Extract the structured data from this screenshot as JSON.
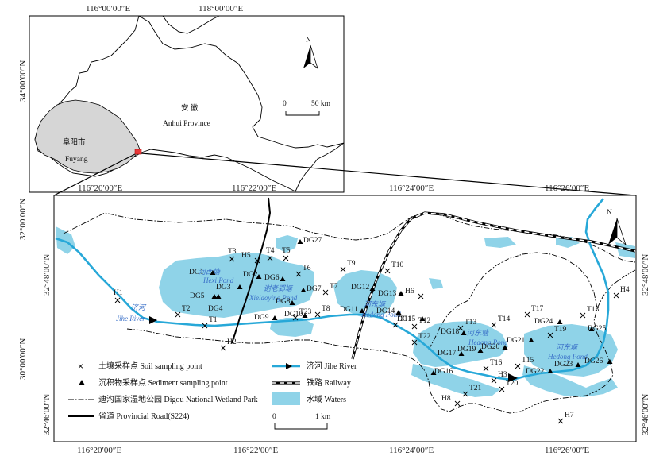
{
  "inset_map": {
    "longitude_labels": [
      "116°00′00″E",
      "118°00′00″E"
    ],
    "latitude_labels": [
      "34°00′00″N",
      "32°00′00″N",
      "30°00′00″N"
    ],
    "province_label_cn": "安 徽",
    "province_label_en": "Anhui Province",
    "city_label_cn": "阜阳市",
    "city_label_en": "Fuyang",
    "scale_label_zero": "0",
    "scale_label": "50 km",
    "north_label": "N"
  },
  "main_map": {
    "longitude_labels_top": [
      "116°20′00″E",
      "116°22′00″E",
      "116°24′00″E",
      "116°26′00″E"
    ],
    "longitude_labels_bottom": [
      "116°20′00″E",
      "116°22′00″E",
      "116°24′00″E",
      "116°26′00″E"
    ],
    "latitude_labels_left": [
      "32°48′00″N",
      "32°46′00″N"
    ],
    "latitude_labels_right": [
      "32°48′00″N",
      "32°46′00″N"
    ],
    "north_label": "N",
    "scale_label_zero": "0",
    "scale_label": "1 km",
    "water_labels": [
      {
        "cn": "河西塘",
        "en": "Hexi Pond"
      },
      {
        "cn": "谢老郢塘",
        "en": "Xielaoying Pond"
      },
      {
        "cn": "河东塘",
        "en": "Hedong Pond"
      },
      {
        "cn": "河东塘",
        "en": "Hedong Pond"
      },
      {
        "cn": "河东塘",
        "en": "Hedong Pond"
      },
      {
        "cn": "济河",
        "en": "Jihe River"
      }
    ],
    "soil_points": [
      "T1",
      "T2",
      "T3",
      "T4",
      "T5",
      "T6",
      "T7",
      "T8",
      "T9",
      "T10",
      "T11",
      "T12",
      "T13",
      "T14",
      "T15",
      "T16",
      "T17",
      "T18",
      "T19",
      "T20",
      "T21",
      "T22",
      "T23",
      "H1",
      "H2",
      "H3",
      "H4",
      "H5",
      "H6",
      "H7",
      "H8"
    ],
    "sediment_points": [
      "DG1",
      "DG2",
      "DG3",
      "DG4",
      "DG5",
      "DG6",
      "DG7",
      "DG8",
      "DG9",
      "DG10",
      "DG11",
      "DG12",
      "DG13",
      "DG14",
      "DG15",
      "DG16",
      "DG17",
      "DG18",
      "DG19",
      "DG20",
      "DG21",
      "DG22",
      "DG23",
      "DG24",
      "DG25",
      "DG26",
      "DG27"
    ]
  },
  "legend": {
    "soil": "土壤采样点 Soil sampling point",
    "sediment": "沉积物采样点 Sediment sampling point",
    "park": "迪沟国家湿地公园 Digou National Wetland  Park",
    "road": "省道 Provincial Road(S224)",
    "river": "济河 Jihe River",
    "railway": "铁路 Railway",
    "waters": "水域 Waters"
  },
  "colors": {
    "water": "#8fd3e8",
    "river": "#27a8d8",
    "fuyang_fill": "#d6d6d6",
    "study_marker": "#e8393a"
  }
}
